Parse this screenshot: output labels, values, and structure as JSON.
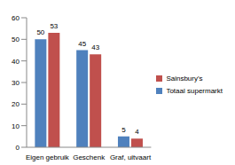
{
  "chart_data": {
    "type": "bar",
    "categories": [
      "Eigen gebruik",
      "Geschenk",
      "Graf, uitvaart"
    ],
    "series": [
      {
        "name": "Totaal supermarkt",
        "color": "#4f81bd",
        "values": [
          50,
          45,
          5
        ]
      },
      {
        "name": "Sainsbury's",
        "color": "#c0504d",
        "values": [
          53,
          43,
          4
        ]
      }
    ],
    "ylim": [
      0,
      60
    ],
    "yticks": [
      0,
      10,
      20,
      30,
      40,
      50,
      60
    ],
    "grid": false,
    "legend": "right",
    "data_labels": true
  }
}
